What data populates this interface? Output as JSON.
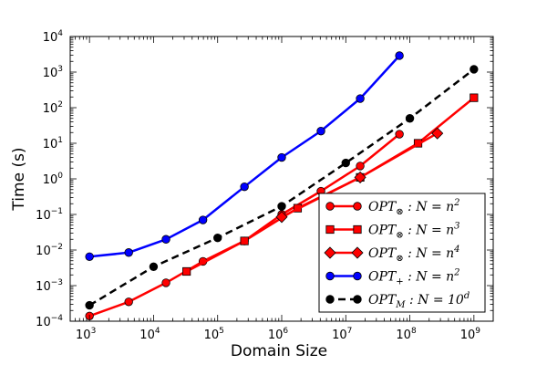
{
  "chart_data": {
    "type": "line",
    "title": "",
    "xlabel": "Domain Size",
    "ylabel": "Time (s)",
    "xscale": "log",
    "yscale": "log",
    "xlim": [
      500,
      2000000000
    ],
    "ylim": [
      0.0001,
      10000
    ],
    "x_tick_labels": [
      {
        "base": "10",
        "exp": "3",
        "value": 1000
      },
      {
        "base": "10",
        "exp": "4",
        "value": 10000
      },
      {
        "base": "10",
        "exp": "5",
        "value": 100000
      },
      {
        "base": "10",
        "exp": "6",
        "value": 1000000
      },
      {
        "base": "10",
        "exp": "7",
        "value": 10000000
      },
      {
        "base": "10",
        "exp": "8",
        "value": 100000000
      },
      {
        "base": "10",
        "exp": "9",
        "value": 1000000000
      }
    ],
    "y_tick_labels": [
      {
        "base": "10",
        "exp": "−4",
        "value": 0.0001
      },
      {
        "base": "10",
        "exp": "−3",
        "value": 0.001
      },
      {
        "base": "10",
        "exp": "−2",
        "value": 0.01
      },
      {
        "base": "10",
        "exp": "−1",
        "value": 0.1
      },
      {
        "base": "10",
        "exp": "0",
        "value": 1
      },
      {
        "base": "10",
        "exp": "1",
        "value": 10
      },
      {
        "base": "10",
        "exp": "2",
        "value": 100
      },
      {
        "base": "10",
        "exp": "3",
        "value": 1000
      },
      {
        "base": "10",
        "exp": "4",
        "value": 10000
      }
    ],
    "legend_position": "lower-right",
    "series": [
      {
        "name": "OPT⊗ : N = n2",
        "legend": {
          "opt": "OPT",
          "sub": "⊗",
          "rest": " : N = n",
          "sup": "2"
        },
        "color": "#ff0000",
        "marker": "circle",
        "dashed": false,
        "x": [
          1000,
          4096,
          15625,
          59049,
          262144,
          1000000,
          4096000,
          16777216,
          68719476
        ],
        "y": [
          0.00014,
          0.00035,
          0.0012,
          0.0048,
          0.018,
          0.1,
          0.45,
          2.3,
          18
        ]
      },
      {
        "name": "OPT⊗ : N = n3",
        "legend": {
          "opt": "OPT",
          "sub": "⊗",
          "rest": " : N = n",
          "sup": "3"
        },
        "color": "#ff0000",
        "marker": "square",
        "dashed": false,
        "x": [
          32768,
          262144,
          1771561,
          16777216,
          134217728,
          1000000000
        ],
        "y": [
          0.0025,
          0.018,
          0.15,
          1.1,
          10,
          190
        ]
      },
      {
        "name": "OPT⊗ : N = n4",
        "legend": {
          "opt": "OPT",
          "sub": "⊗",
          "rest": " : N = n",
          "sup": "4"
        },
        "color": "#ff0000",
        "marker": "diamond",
        "dashed": false,
        "x": [
          1000000,
          16777216,
          268435456
        ],
        "y": [
          0.085,
          1.1,
          19
        ]
      },
      {
        "name": "OPT+ : N = n2",
        "legend": {
          "opt": "OPT",
          "sub": "+",
          "rest": " : N = n",
          "sup": "2"
        },
        "color": "#0000ff",
        "marker": "circle",
        "dashed": false,
        "x": [
          1000,
          4096,
          15625,
          59049,
          262144,
          1000000,
          4096000,
          16777216,
          68719476
        ],
        "y": [
          0.0065,
          0.0085,
          0.02,
          0.07,
          0.6,
          4,
          22,
          180,
          2900
        ]
      },
      {
        "name": "OPTM : N = 10d",
        "legend": {
          "opt": "OPT",
          "sub": "M",
          "rest": " : N = 10",
          "sup": "d"
        },
        "color": "#000000",
        "marker": "circle",
        "dashed": true,
        "x": [
          1000,
          10000,
          100000,
          1000000,
          10000000,
          100000000,
          1000000000
        ],
        "y": [
          0.00028,
          0.0034,
          0.022,
          0.17,
          2.8,
          50,
          1200
        ]
      }
    ]
  }
}
